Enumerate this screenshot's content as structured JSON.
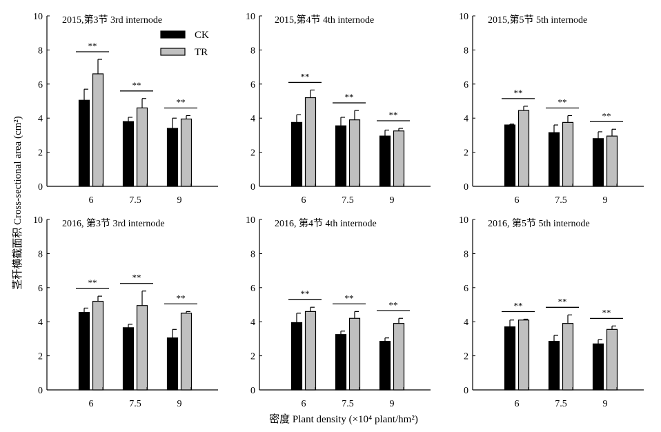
{
  "figure": {
    "ylabel": "茎秆横截面积 Cross-sectional area (cm²)",
    "xlabel": "密度 Plant density (×10⁴ plant/hm²)"
  },
  "legend": [
    {
      "label": "CK",
      "color": "#000000"
    },
    {
      "label": "TR",
      "color": "#c0c0c0"
    }
  ],
  "chart_data": [
    {
      "type": "bar",
      "title": "2015,第3节 3rd internode",
      "categories": [
        "6",
        "7.5",
        "9"
      ],
      "ylim": [
        0,
        10
      ],
      "yticks": [
        "0",
        "2",
        "4",
        "6",
        "8",
        "10"
      ],
      "series": [
        {
          "name": "CK",
          "values": [
            5.05,
            3.8,
            3.4
          ],
          "errors": [
            0.65,
            0.25,
            0.6
          ]
        },
        {
          "name": "TR",
          "values": [
            6.6,
            4.6,
            3.95
          ],
          "errors": [
            0.85,
            0.55,
            0.2
          ]
        }
      ],
      "significance": [
        "**",
        "**",
        "**"
      ]
    },
    {
      "type": "bar",
      "title": "2015,第4节 4th internode",
      "categories": [
        "6",
        "7.5",
        "9"
      ],
      "ylim": [
        0,
        10
      ],
      "yticks": [
        "0",
        "2",
        "4",
        "6",
        "8",
        "10"
      ],
      "series": [
        {
          "name": "CK",
          "values": [
            3.75,
            3.55,
            2.95
          ],
          "errors": [
            0.45,
            0.5,
            0.35
          ]
        },
        {
          "name": "TR",
          "values": [
            5.2,
            3.9,
            3.25
          ],
          "errors": [
            0.45,
            0.55,
            0.15
          ]
        }
      ],
      "significance": [
        "**",
        "**",
        "**"
      ]
    },
    {
      "type": "bar",
      "title": "2015,第5节 5th internode",
      "categories": [
        "6",
        "7.5",
        "9"
      ],
      "ylim": [
        0,
        10
      ],
      "yticks": [
        "0",
        "2",
        "4",
        "6",
        "8",
        "10"
      ],
      "series": [
        {
          "name": "CK",
          "values": [
            3.6,
            3.15,
            2.8
          ],
          "errors": [
            0.05,
            0.45,
            0.4
          ]
        },
        {
          "name": "TR",
          "values": [
            4.45,
            3.75,
            2.95
          ],
          "errors": [
            0.25,
            0.4,
            0.4
          ]
        }
      ],
      "significance": [
        "**",
        "**",
        "**"
      ]
    },
    {
      "type": "bar",
      "title": "2016, 第3节 3rd internode",
      "categories": [
        "6",
        "7.5",
        "9"
      ],
      "ylim": [
        0,
        10
      ],
      "yticks": [
        "0",
        "2",
        "4",
        "6",
        "8",
        "10"
      ],
      "series": [
        {
          "name": "CK",
          "values": [
            4.55,
            3.65,
            3.05
          ],
          "errors": [
            0.25,
            0.2,
            0.5
          ]
        },
        {
          "name": "TR",
          "values": [
            5.2,
            4.95,
            4.5
          ],
          "errors": [
            0.3,
            0.85,
            0.1
          ]
        }
      ],
      "significance": [
        "**",
        "**",
        "**"
      ]
    },
    {
      "type": "bar",
      "title": "2016, 第4节 4th internode",
      "categories": [
        "6",
        "7.5",
        "9"
      ],
      "ylim": [
        0,
        10
      ],
      "yticks": [
        "0",
        "2",
        "4",
        "6",
        "8",
        "10"
      ],
      "series": [
        {
          "name": "CK",
          "values": [
            3.95,
            3.25,
            2.85
          ],
          "errors": [
            0.55,
            0.2,
            0.2
          ]
        },
        {
          "name": "TR",
          "values": [
            4.6,
            4.2,
            3.9
          ],
          "errors": [
            0.25,
            0.4,
            0.3
          ]
        }
      ],
      "significance": [
        "**",
        "**",
        "**"
      ]
    },
    {
      "type": "bar",
      "title": "2016, 第5节 5th internode",
      "categories": [
        "6",
        "7.5",
        "9"
      ],
      "ylim": [
        0,
        10
      ],
      "yticks": [
        "0",
        "2",
        "4",
        "6",
        "8",
        "10"
      ],
      "series": [
        {
          "name": "CK",
          "values": [
            3.7,
            2.85,
            2.7
          ],
          "errors": [
            0.4,
            0.35,
            0.25
          ]
        },
        {
          "name": "TR",
          "values": [
            4.1,
            3.9,
            3.55
          ],
          "errors": [
            0.05,
            0.5,
            0.2
          ]
        }
      ],
      "significance": [
        "**",
        "**",
        "**"
      ]
    }
  ]
}
